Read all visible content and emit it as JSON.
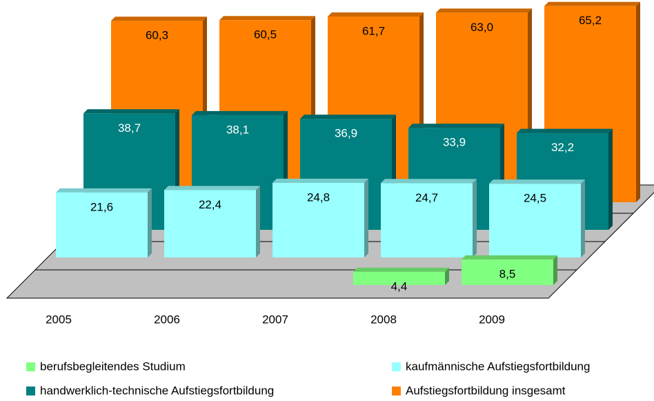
{
  "chart_data": {
    "type": "bar3d",
    "categories": [
      "2005",
      "2006",
      "2007",
      "2008",
      "2009"
    ],
    "series": [
      {
        "name": "berufsbegleitendes Studium",
        "color": "#80ff80",
        "label_color": "#000000",
        "values": [
          null,
          null,
          null,
          4.4,
          8.5
        ],
        "value_labels": [
          null,
          null,
          null,
          "4,4",
          "8,5"
        ]
      },
      {
        "name": "kaufmännische Aufstiegsfortbildung",
        "color": "#99ffff",
        "label_color": "#000000",
        "values": [
          21.6,
          22.4,
          24.8,
          24.7,
          24.5
        ],
        "value_labels": [
          "21,6",
          "22,4",
          "24,8",
          "24,7",
          "24,5"
        ]
      },
      {
        "name": "handwerklich-technische Aufstiegsfortbildung",
        "color": "#008080",
        "label_color": "#ffffff",
        "values": [
          38.7,
          38.1,
          36.9,
          33.9,
          32.2
        ],
        "value_labels": [
          "38,7",
          "38,1",
          "36,9",
          "33,9",
          "32,2"
        ]
      },
      {
        "name": "Aufstiegsfortbildung insgesamt",
        "color": "#ff8000",
        "label_color": "#000000",
        "values": [
          60.3,
          60.5,
          61.7,
          63.0,
          65.2
        ],
        "value_labels": [
          "60,3",
          "60,5",
          "61,7",
          "63,0",
          "65,2"
        ]
      }
    ]
  }
}
